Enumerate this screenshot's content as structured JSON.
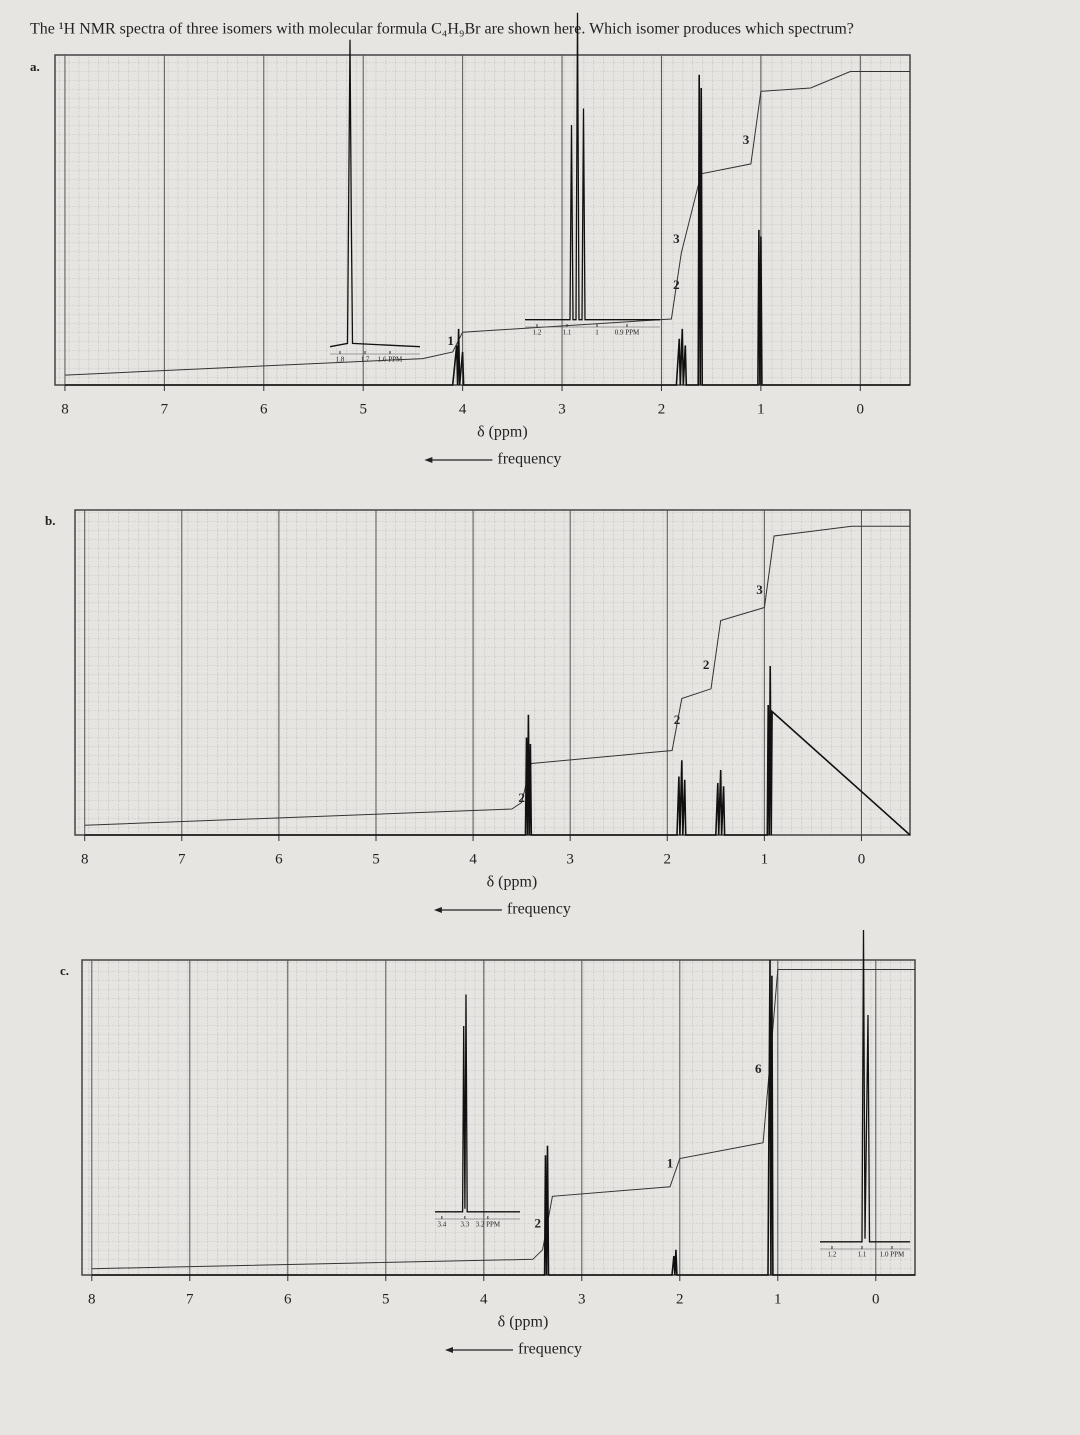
{
  "title": "The ¹H NMR spectra of three isomers with molecular formula C₄H₉Br are shown here. Which isomer produces which spectrum?",
  "chart_data": [
    {
      "type": "line",
      "label": "a.",
      "x_label": "δ (ppm)",
      "frequency_label": "frequency",
      "xlim": [
        8.1,
        -0.5
      ],
      "ylim": [
        0,
        100
      ],
      "xticks": [
        8,
        7,
        6,
        5,
        4,
        3,
        2,
        1,
        0
      ],
      "x": [
        8,
        4.1,
        4.06,
        4.05,
        4.04,
        4.03,
        4.0,
        3.99,
        1.85,
        1.82,
        1.81,
        1.79,
        1.78,
        1.76,
        1.75,
        1.63,
        1.62,
        1.61,
        1.6,
        1.59,
        1.03,
        1.02,
        1.01,
        1.0,
        0.99,
        -0.5
      ],
      "values": [
        0,
        0,
        12,
        0,
        17,
        0,
        10,
        0,
        0,
        14,
        0,
        17,
        0,
        12,
        0,
        0,
        94,
        0,
        90,
        0,
        0,
        47,
        0,
        45,
        0,
        0
      ],
      "integral": {
        "x": [
          8,
          4.4,
          4.1,
          4.0,
          1.9,
          1.8,
          1.6,
          1.1,
          1.0,
          0.5,
          0.1,
          -0.5
        ],
        "values": [
          3,
          8,
          10,
          16,
          20,
          40,
          64,
          67,
          89,
          90,
          95,
          95
        ]
      },
      "annotations": [
        {
          "text": "1",
          "x": 4.12,
          "y": 13
        },
        {
          "text": "2",
          "x": 1.85,
          "y": 30
        },
        {
          "text": "3",
          "x": 1.85,
          "y": 44
        },
        {
          "text": "3",
          "x": 1.15,
          "y": 74
        }
      ],
      "insets": [
        {
          "xlim": [
            1.84,
            1.48
          ],
          "xticks": [
            1.8,
            1.7,
            {
              "value": 1.6,
              "label": "1.6 PPM"
            }
          ],
          "x": [
            1.84,
            1.77,
            1.765,
            1.76,
            1.755,
            1.75,
            1.48
          ],
          "values": [
            1,
            2,
            50,
            94,
            40,
            2,
            1
          ]
        },
        {
          "xlim": [
            1.24,
            0.79
          ],
          "xticks": [
            1.2,
            1.1,
            1.0,
            {
              "value": 0.9,
              "label": "0.9 PPM"
            }
          ],
          "x": [
            1.24,
            1.09,
            1.085,
            1.08,
            1.07,
            1.065,
            1.06,
            1.05,
            1.045,
            1.04,
            0.79
          ],
          "values": [
            1,
            1,
            60,
            1,
            1,
            94,
            1,
            1,
            65,
            1,
            1
          ]
        }
      ]
    },
    {
      "type": "line",
      "label": "b.",
      "x_label": "δ (ppm)",
      "frequency_label": "frequency",
      "xlim": [
        8.1,
        -0.5
      ],
      "ylim": [
        0,
        100
      ],
      "xticks": [
        8,
        7,
        6,
        5,
        4,
        3,
        2,
        1,
        0
      ],
      "x": [
        8,
        3.46,
        3.45,
        3.44,
        3.43,
        3.42,
        3.41,
        3.4,
        1.9,
        1.88,
        1.87,
        1.85,
        1.84,
        1.82,
        1.81,
        1.5,
        1.48,
        1.47,
        1.45,
        1.44,
        1.42,
        1.41,
        0.97,
        0.96,
        0.95,
        0.94,
        0.93,
        0.92,
        -0.5
      ],
      "values": [
        0,
        0,
        30,
        0,
        37,
        0,
        28,
        0,
        0,
        18,
        0,
        23,
        0,
        17,
        0,
        0,
        16,
        0,
        20,
        0,
        15,
        0,
        0,
        40,
        0,
        52,
        0,
        38,
        0
      ],
      "integral": {
        "x": [
          8,
          3.6,
          3.5,
          3.4,
          1.95,
          1.85,
          1.55,
          1.45,
          1.0,
          0.9,
          0.1,
          -0.5
        ],
        "values": [
          3,
          8,
          10,
          22,
          26,
          42,
          45,
          66,
          70,
          92,
          95,
          95
        ]
      },
      "annotations": [
        {
          "text": "2",
          "x": 3.5,
          "y": 11
        },
        {
          "text": "2",
          "x": 1.9,
          "y": 35
        },
        {
          "text": "2",
          "x": 1.6,
          "y": 52
        },
        {
          "text": "3",
          "x": 1.05,
          "y": 75
        }
      ],
      "insets": []
    },
    {
      "type": "line",
      "label": "c.",
      "x_label": "δ (ppm)",
      "frequency_label": "frequency",
      "xlim": [
        8.1,
        -0.4
      ],
      "ylim": [
        0,
        100
      ],
      "xticks": [
        8,
        7,
        6,
        5,
        4,
        3,
        2,
        1,
        0
      ],
      "x": [
        8,
        3.38,
        3.37,
        3.36,
        3.35,
        3.34,
        2.08,
        2.06,
        2.05,
        2.04,
        2.03,
        1.1,
        1.08,
        1.07,
        1.06,
        1.05,
        -0.4
      ],
      "values": [
        0,
        0,
        38,
        0,
        41,
        0,
        0,
        6,
        0,
        8,
        0,
        0,
        100,
        0,
        95,
        0,
        0
      ],
      "integral": {
        "x": [
          8,
          3.5,
          3.4,
          3.3,
          2.1,
          2.0,
          1.15,
          1.1,
          1.0,
          0.5,
          -0.4
        ],
        "values": [
          2,
          5,
          8,
          25,
          28,
          37,
          42,
          60,
          97,
          97,
          97
        ]
      },
      "annotations": [
        {
          "text": "2",
          "x": 3.45,
          "y": 16
        },
        {
          "text": "1",
          "x": 2.1,
          "y": 35
        },
        {
          "text": "6",
          "x": 1.2,
          "y": 65
        }
      ],
      "insets": [
        {
          "xlim": [
            3.43,
            3.06
          ],
          "xticks": [
            3.4,
            3.3,
            {
              "value": 3.2,
              "label": "3.2 PPM"
            }
          ],
          "x": [
            3.43,
            3.31,
            3.305,
            3.3,
            3.295,
            3.29,
            3.06
          ],
          "values": [
            1,
            1,
            60,
            2,
            70,
            1,
            1
          ]
        },
        {
          "xlim": [
            1.24,
            0.94
          ],
          "xticks": [
            1.2,
            1.1,
            {
              "value": 1.0,
              "label": "1.0 PPM"
            }
          ],
          "x": [
            1.24,
            1.1,
            1.095,
            1.09,
            1.08,
            1.075,
            0.94
          ],
          "values": [
            1,
            1,
            100,
            2,
            73,
            1,
            1
          ]
        }
      ]
    }
  ]
}
